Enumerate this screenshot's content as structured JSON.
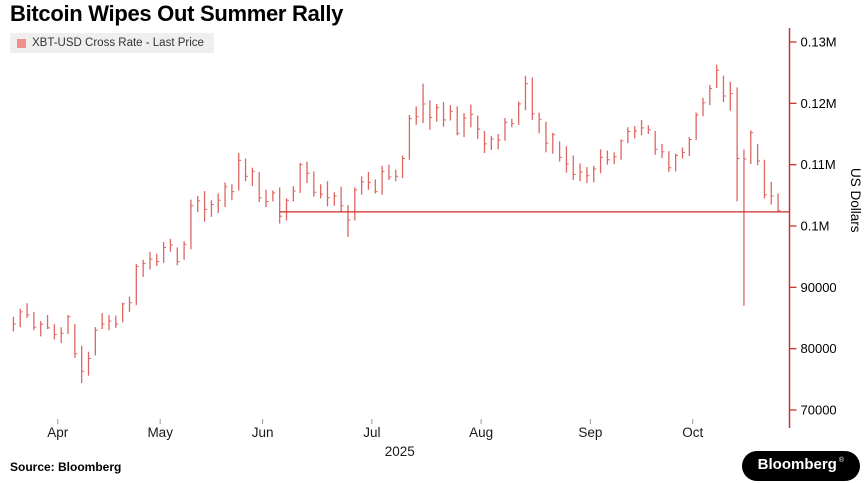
{
  "header": {
    "title": "Bitcoin Wipes Out Summer Rally"
  },
  "legend": {
    "label": "XBT-USD Cross Rate - Last Price"
  },
  "axes": {
    "y_title": "US Dollars",
    "year": "2025"
  },
  "footer": {
    "source": "Source: Bloomberg",
    "logo": "Bloomberg",
    "logo_mark": "®"
  },
  "colors": {
    "series": "#dd6661",
    "legend_swatch": "#f0908c",
    "axis": "#c0392b",
    "reference_line": "#cc2b25",
    "tick_label": "#000000",
    "x_label": "#1a1a1a",
    "x_tick": "#999999",
    "logo_bg": "#000000",
    "logo_fg": "#ffffff"
  },
  "chart_data": {
    "type": "bar",
    "subtype": "hlc_price_bars",
    "title": "Bitcoin Wipes Out Summer Rally",
    "series_name": "XBT-USD Cross Rate - Last Price",
    "unit": "USD",
    "ylabel": "US Dollars",
    "ylim": [
      68000,
      132000
    ],
    "grid": false,
    "legend_position": "top-left",
    "y_ticks": [
      {
        "value": 70000,
        "label": "70000"
      },
      {
        "value": 80000,
        "label": "80000"
      },
      {
        "value": 90000,
        "label": "90000"
      },
      {
        "value": 100000,
        "label": "0.1M"
      },
      {
        "value": 110000,
        "label": "0.11M"
      },
      {
        "value": 120000,
        "label": "0.12M"
      },
      {
        "value": 130000,
        "label": "0.13M"
      }
    ],
    "x_ticks": [
      {
        "label": "Apr",
        "index": 7
      },
      {
        "label": "May",
        "index": 22
      },
      {
        "label": "Jun",
        "index": 37
      },
      {
        "label": "Jul",
        "index": 53
      },
      {
        "label": "Aug",
        "index": 69
      },
      {
        "label": "Sep",
        "index": 85
      },
      {
        "label": "Oct",
        "index": 100
      }
    ],
    "year_label": "2025",
    "reference_line": {
      "value": 102300,
      "start_index": 39
    },
    "bar_fields": [
      "high",
      "low",
      "close"
    ],
    "bars": [
      [
        85200,
        82800,
        84000
      ],
      [
        86500,
        83500,
        86000
      ],
      [
        87400,
        85000,
        85500
      ],
      [
        86000,
        83000,
        83500
      ],
      [
        84500,
        82000,
        84000
      ],
      [
        85500,
        83200,
        83400
      ],
      [
        84000,
        81500,
        82300
      ],
      [
        83500,
        80900,
        82500
      ],
      [
        85500,
        82400,
        85200
      ],
      [
        84000,
        78500,
        79200
      ],
      [
        80500,
        74400,
        76300
      ],
      [
        79500,
        75600,
        78400
      ],
      [
        83500,
        78900,
        83000
      ],
      [
        85800,
        83200,
        84000
      ],
      [
        85500,
        83000,
        84500
      ],
      [
        85400,
        83400,
        84000
      ],
      [
        87500,
        84300,
        87300
      ],
      [
        88500,
        86000,
        87500
      ],
      [
        93800,
        87100,
        93400
      ],
      [
        94500,
        91700,
        93900
      ],
      [
        95800,
        92900,
        94600
      ],
      [
        95500,
        93500,
        94200
      ],
      [
        97400,
        94000,
        96500
      ],
      [
        97900,
        95800,
        96900
      ],
      [
        96500,
        93600,
        94200
      ],
      [
        97500,
        94500,
        97000
      ],
      [
        104300,
        96200,
        103300
      ],
      [
        104900,
        102300,
        104100
      ],
      [
        105700,
        100700,
        102700
      ],
      [
        104200,
        101500,
        103500
      ],
      [
        105300,
        102100,
        104200
      ],
      [
        107100,
        103100,
        106400
      ],
      [
        106800,
        104200,
        105600
      ],
      [
        111900,
        105800,
        110700
      ],
      [
        111000,
        107300,
        108100
      ],
      [
        109500,
        106500,
        108900
      ],
      [
        108800,
        103900,
        104600
      ],
      [
        105900,
        103100,
        104000
      ],
      [
        105800,
        104000,
        105400
      ],
      [
        106300,
        100400,
        101600
      ],
      [
        104500,
        100900,
        104200
      ],
      [
        106500,
        104000,
        105700
      ],
      [
        110300,
        105400,
        110000
      ],
      [
        110500,
        107000,
        108600
      ],
      [
        108900,
        104800,
        105500
      ],
      [
        106800,
        104500,
        105200
      ],
      [
        107300,
        103200,
        104600
      ],
      [
        105500,
        103300,
        104900
      ],
      [
        106400,
        102200,
        103300
      ],
      [
        103400,
        98200,
        101000
      ],
      [
        106300,
        100900,
        105900
      ],
      [
        108100,
        105100,
        107200
      ],
      [
        108800,
        105900,
        107100
      ],
      [
        107600,
        105300,
        105600
      ],
      [
        109800,
        105100,
        108900
      ],
      [
        110000,
        107500,
        108000
      ],
      [
        109200,
        107300,
        108100
      ],
      [
        111500,
        107800,
        111000
      ],
      [
        118100,
        110800,
        117500
      ],
      [
        119500,
        116500,
        117800
      ],
      [
        123200,
        116800,
        119900
      ],
      [
        120500,
        115700,
        117700
      ],
      [
        119900,
        117000,
        119300
      ],
      [
        120200,
        116200,
        117300
      ],
      [
        119700,
        117200,
        118700
      ],
      [
        119500,
        114800,
        115100
      ],
      [
        118400,
        114500,
        117600
      ],
      [
        119800,
        116100,
        118200
      ],
      [
        118000,
        114200,
        115800
      ],
      [
        115500,
        111900,
        113400
      ],
      [
        114700,
        112400,
        114200
      ],
      [
        115000,
        112500,
        114000
      ],
      [
        117600,
        113900,
        116900
      ],
      [
        117500,
        116100,
        116700
      ],
      [
        120300,
        116500,
        119900
      ],
      [
        124500,
        118900,
        123200
      ],
      [
        124200,
        117300,
        118300
      ],
      [
        118500,
        115100,
        117400
      ],
      [
        117000,
        112000,
        113500
      ],
      [
        115200,
        111800,
        114900
      ],
      [
        113800,
        110500,
        111200
      ],
      [
        113000,
        108700,
        110100
      ],
      [
        111500,
        107500,
        108400
      ],
      [
        110200,
        107300,
        108800
      ],
      [
        109600,
        107000,
        108200
      ],
      [
        109800,
        107100,
        109300
      ],
      [
        112500,
        108600,
        111200
      ],
      [
        112300,
        110000,
        110800
      ],
      [
        112000,
        110100,
        111300
      ],
      [
        114100,
        110800,
        113900
      ],
      [
        116100,
        113500,
        115400
      ],
      [
        116300,
        114300,
        115500
      ],
      [
        117300,
        114800,
        116000
      ],
      [
        116400,
        115000,
        115700
      ],
      [
        115500,
        111600,
        112500
      ],
      [
        113400,
        111100,
        112100
      ],
      [
        112200,
        108800,
        109500
      ],
      [
        111800,
        108900,
        111500
      ],
      [
        112800,
        111000,
        112000
      ],
      [
        114500,
        111400,
        114100
      ],
      [
        118500,
        114000,
        118100
      ],
      [
        120900,
        117900,
        120100
      ],
      [
        123000,
        119700,
        122400
      ],
      [
        126300,
        122500,
        125400
      ],
      [
        124500,
        120200,
        121200
      ],
      [
        123500,
        118800,
        121600
      ],
      [
        122600,
        104000,
        111000
      ],
      [
        112500,
        87000,
        110900
      ],
      [
        115600,
        110100,
        115200
      ],
      [
        113400,
        109900,
        110600
      ],
      [
        110800,
        104500,
        105100
      ],
      [
        107200,
        103500,
        104900
      ],
      [
        105300,
        102200,
        102500
      ]
    ]
  }
}
